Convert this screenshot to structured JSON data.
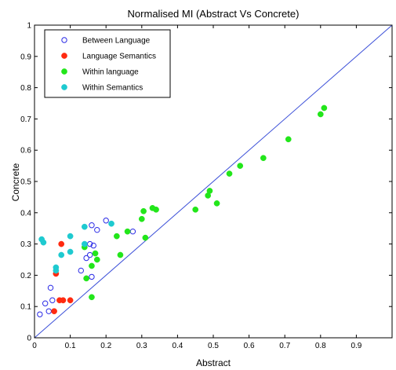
{
  "chart_data": {
    "type": "scatter",
    "title": "Normalised MI (Abstract Vs Concrete)",
    "xlabel": "Abstract",
    "ylabel": "Concrete",
    "xlim": [
      0,
      1
    ],
    "ylim": [
      0,
      1
    ],
    "xticks": [
      0,
      0.1,
      0.2,
      0.3,
      0.4,
      0.5,
      0.6,
      0.7,
      0.8,
      0.9
    ],
    "xtick_labels": [
      "0",
      "0.1",
      "0.2",
      "0.3",
      "0.4",
      "0.5",
      "0.6",
      "0.7",
      "0.8",
      "0.9"
    ],
    "yticks": [
      0,
      0.1,
      0.2,
      0.3,
      0.4,
      0.5,
      0.6,
      0.7,
      0.8,
      0.9,
      1
    ],
    "ytick_labels": [
      "0",
      "0.1",
      "0.2",
      "0.3",
      "0.4",
      "0.5",
      "0.6",
      "0.7",
      "0.8",
      "0.9",
      "1"
    ],
    "grid": false,
    "legend_position": "top-left",
    "reference_line": {
      "from": [
        0,
        0
      ],
      "to": [
        1,
        1
      ],
      "color": "#3b4fd8"
    },
    "series": [
      {
        "name": "Between Language",
        "color": "#2a2ae6",
        "marker": "open-circle",
        "points": [
          [
            0.015,
            0.075
          ],
          [
            0.03,
            0.11
          ],
          [
            0.04,
            0.085
          ],
          [
            0.045,
            0.16
          ],
          [
            0.05,
            0.12
          ],
          [
            0.13,
            0.215
          ],
          [
            0.145,
            0.255
          ],
          [
            0.155,
            0.265
          ],
          [
            0.155,
            0.3
          ],
          [
            0.16,
            0.195
          ],
          [
            0.16,
            0.36
          ],
          [
            0.175,
            0.345
          ],
          [
            0.2,
            0.375
          ],
          [
            0.165,
            0.295
          ],
          [
            0.275,
            0.34
          ]
        ]
      },
      {
        "name": "Language Semantics",
        "color": "#ff2a10",
        "marker": "filled-circle",
        "points": [
          [
            0.055,
            0.085
          ],
          [
            0.06,
            0.205
          ],
          [
            0.07,
            0.12
          ],
          [
            0.08,
            0.12
          ],
          [
            0.075,
            0.3
          ],
          [
            0.1,
            0.12
          ]
        ]
      },
      {
        "name": "Within language",
        "color": "#22e61a",
        "marker": "filled-circle",
        "points": [
          [
            0.14,
            0.29
          ],
          [
            0.145,
            0.19
          ],
          [
            0.16,
            0.13
          ],
          [
            0.16,
            0.23
          ],
          [
            0.175,
            0.25
          ],
          [
            0.17,
            0.27
          ],
          [
            0.23,
            0.325
          ],
          [
            0.24,
            0.265
          ],
          [
            0.26,
            0.34
          ],
          [
            0.3,
            0.38
          ],
          [
            0.305,
            0.405
          ],
          [
            0.31,
            0.32
          ],
          [
            0.33,
            0.415
          ],
          [
            0.34,
            0.41
          ],
          [
            0.45,
            0.41
          ],
          [
            0.485,
            0.455
          ],
          [
            0.49,
            0.47
          ],
          [
            0.51,
            0.43
          ],
          [
            0.545,
            0.525
          ],
          [
            0.575,
            0.55
          ],
          [
            0.64,
            0.575
          ],
          [
            0.71,
            0.635
          ],
          [
            0.8,
            0.715
          ],
          [
            0.81,
            0.735
          ]
        ]
      },
      {
        "name": "Within Semantics",
        "color": "#1ecad0",
        "marker": "filled-circle",
        "points": [
          [
            0.02,
            0.315
          ],
          [
            0.025,
            0.305
          ],
          [
            0.06,
            0.215
          ],
          [
            0.06,
            0.225
          ],
          [
            0.075,
            0.265
          ],
          [
            0.1,
            0.275
          ],
          [
            0.1,
            0.325
          ],
          [
            0.14,
            0.3
          ],
          [
            0.14,
            0.355
          ],
          [
            0.215,
            0.365
          ]
        ]
      }
    ]
  }
}
